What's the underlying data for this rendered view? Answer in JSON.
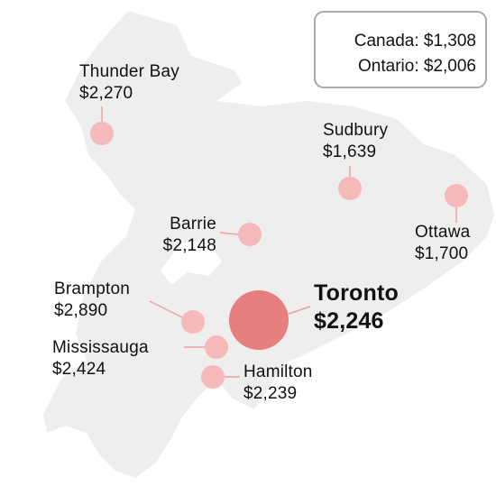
{
  "map": {
    "region_color": "#eeeeee",
    "marker_color": "#f6b9b9",
    "highlight_marker_color": "#e87f7f",
    "leader_color": "#f0a0a0"
  },
  "legend": {
    "canada_label": "Canada: $1,308",
    "ontario_label": "Ontario: $2,006"
  },
  "cities": [
    {
      "name": "Thunder Bay",
      "price": "$2,270"
    },
    {
      "name": "Sudbury",
      "price": "$1,639"
    },
    {
      "name": "Ottawa",
      "price": "$1,700"
    },
    {
      "name": "Barrie",
      "price": "$2,148"
    },
    {
      "name": "Toronto",
      "price": "$2,246"
    },
    {
      "name": "Brampton",
      "price": "$2,890"
    },
    {
      "name": "Mississauga",
      "price": "$2,424"
    },
    {
      "name": "Hamilton",
      "price": "$2,239"
    }
  ]
}
